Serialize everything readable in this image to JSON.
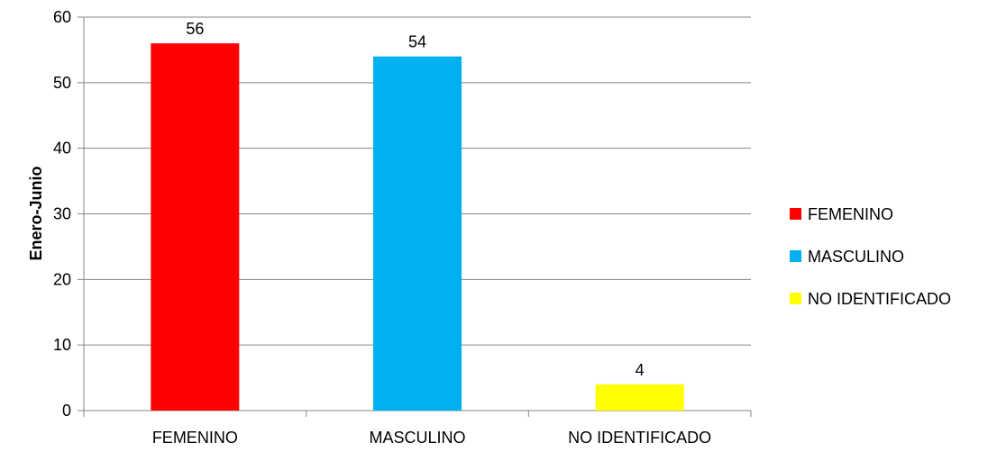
{
  "chart_data": {
    "type": "bar",
    "title": "",
    "xlabel": "",
    "ylabel": "Enero-Junio",
    "categories": [
      "FEMENINO",
      "MASCULINO",
      "NO IDENTIFICADO"
    ],
    "values": [
      56,
      54,
      4
    ],
    "colors": [
      "#FF0000",
      "#00B0F0",
      "#FFFF00"
    ],
    "ylim": [
      0,
      60
    ],
    "yticks": [
      0,
      10,
      20,
      30,
      40,
      50,
      60
    ],
    "grid": true,
    "legend": {
      "placement": "right",
      "entries": [
        {
          "label": "FEMENINO",
          "color": "#FF0000"
        },
        {
          "label": "MASCULINO",
          "color": "#00B0F0"
        },
        {
          "label": "NO IDENTIFICADO",
          "color": "#FFFF00"
        }
      ]
    }
  }
}
